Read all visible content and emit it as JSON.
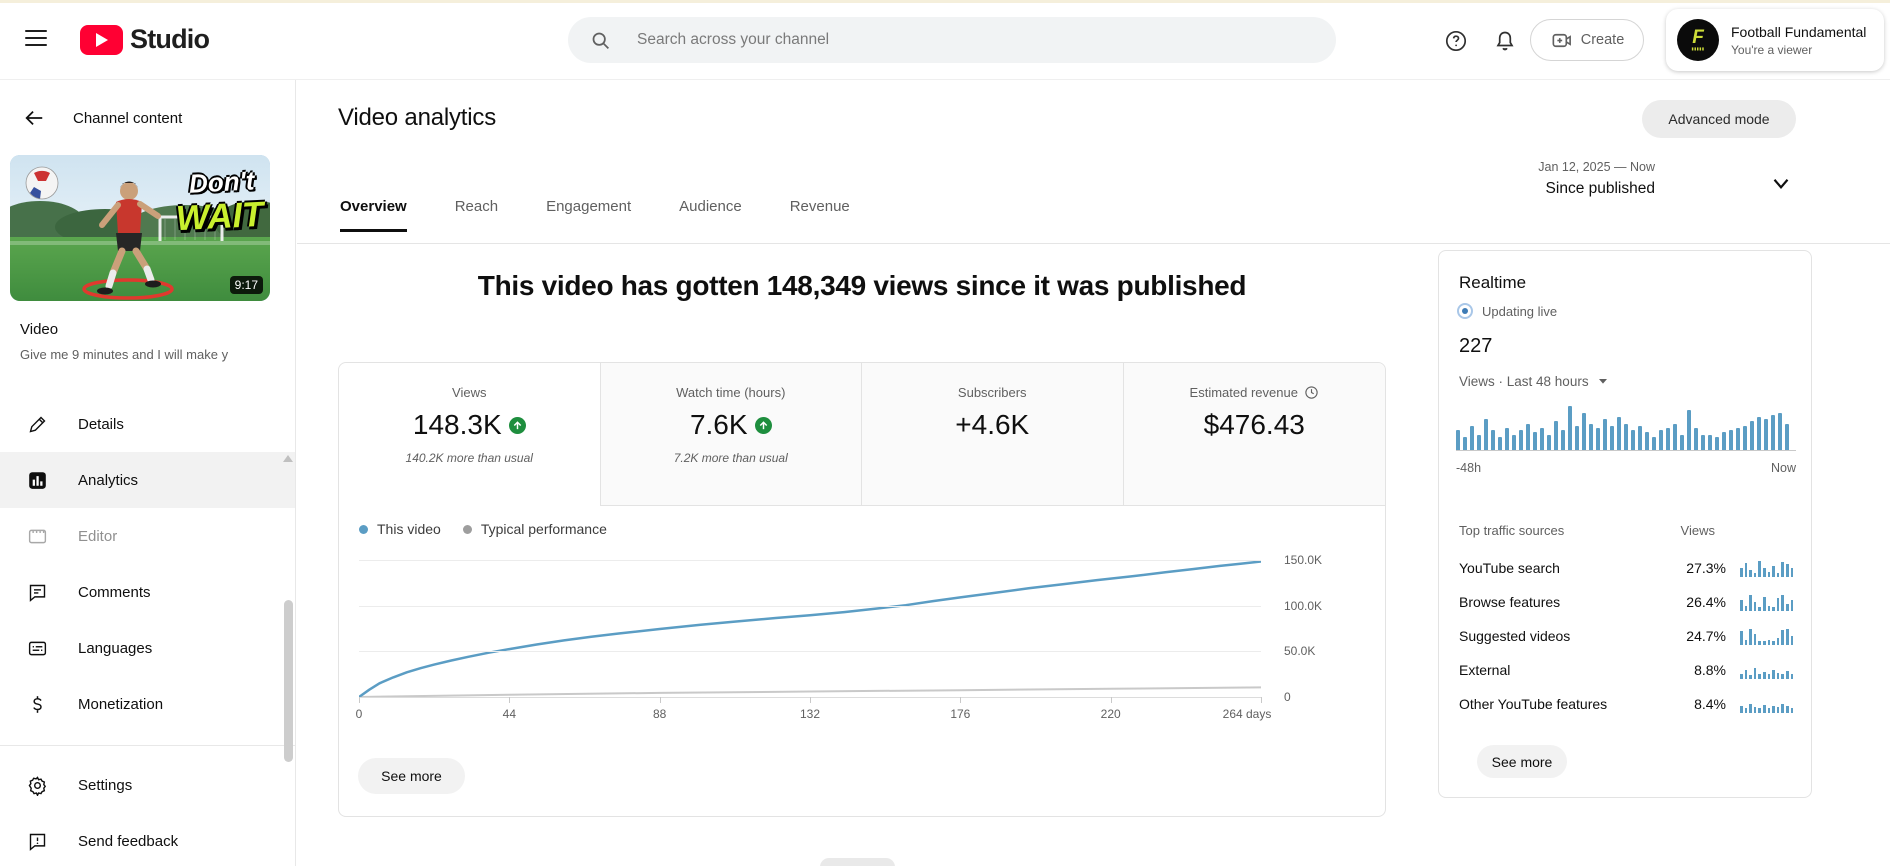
{
  "topbar": {
    "studio": "Studio",
    "search_placeholder": "Search across your channel",
    "create_label": "Create",
    "channel_name": "Football Fundamental",
    "channel_role": "You're a viewer",
    "avatar_monogram": "F"
  },
  "sidebar": {
    "back_title": "Channel content",
    "thumb_text_line1": "Don't",
    "thumb_text_line2": "WAIT",
    "video_duration": "9:17",
    "video_label": "Video",
    "video_subtitle": "Give me 9 minutes and I will make y",
    "items": [
      {
        "label": "Details"
      },
      {
        "label": "Analytics"
      },
      {
        "label": "Editor"
      },
      {
        "label": "Comments"
      },
      {
        "label": "Languages"
      },
      {
        "label": "Monetization"
      }
    ],
    "footer_items": [
      {
        "label": "Settings"
      },
      {
        "label": "Send feedback"
      }
    ]
  },
  "header": {
    "title": "Video analytics",
    "advanced_mode": "Advanced mode",
    "tabs": [
      "Overview",
      "Reach",
      "Engagement",
      "Audience",
      "Revenue"
    ],
    "active_tab": "Overview",
    "date_range": "Jan 12, 2025 — Now",
    "date_label": "Since published"
  },
  "main": {
    "headline": "This video has gotten 148,349 views since it was published",
    "metrics": [
      {
        "label": "Views",
        "value": "148.3K",
        "delta": "140.2K more than usual",
        "trend_up": true,
        "selected": true
      },
      {
        "label": "Watch time (hours)",
        "value": "7.6K",
        "delta": "7.2K more than usual",
        "trend_up": true
      },
      {
        "label": "Subscribers",
        "value": "+4.6K"
      },
      {
        "label": "Estimated revenue",
        "value": "$476.43"
      }
    ],
    "see_more": "See more"
  },
  "realtime": {
    "title": "Realtime",
    "updating": "Updating live",
    "views_count": "227",
    "views_caption": "Views · Last 48 hours",
    "axis_left": "-48h",
    "axis_right": "Now",
    "table_header_sources": "Top traffic sources",
    "table_header_views": "Views",
    "sources": [
      {
        "name": "YouTube search",
        "pct": "27.3%"
      },
      {
        "name": "Browse features",
        "pct": "26.4%"
      },
      {
        "name": "Suggested videos",
        "pct": "24.7%"
      },
      {
        "name": "External",
        "pct": "8.8%"
      },
      {
        "name": "Other YouTube features",
        "pct": "8.4%"
      }
    ],
    "see_more": "See more"
  },
  "colors": {
    "accent_blue": "#5b9dc4",
    "typical_gray": "#c9c9c9",
    "legend_gray": "#9e9e9e",
    "green_badge": "#1e8e3e",
    "brand_red": "#ff0033"
  },
  "chart_data": [
    {
      "type": "line",
      "title": "Cumulative views since published",
      "xlabel": "days",
      "ylabel": "views",
      "xlim": [
        0,
        264
      ],
      "ylim": [
        0,
        150000
      ],
      "grid": true,
      "legend_position": "top-left",
      "x_ticks": [
        {
          "v": 0,
          "label": "0"
        },
        {
          "v": 44,
          "label": "44"
        },
        {
          "v": 88,
          "label": "88"
        },
        {
          "v": 132,
          "label": "132"
        },
        {
          "v": 176,
          "label": "176"
        },
        {
          "v": 220,
          "label": "220"
        },
        {
          "v": 264,
          "label": "264 days"
        }
      ],
      "y_ticks": [
        {
          "v": 0,
          "label": "0"
        },
        {
          "v": 50000,
          "label": "50.0K"
        },
        {
          "v": 100000,
          "label": "100.0K"
        },
        {
          "v": 150000,
          "label": "150.0K"
        }
      ],
      "series": [
        {
          "name": "This video",
          "color": "#5b9dc4",
          "points": [
            [
              0,
              0
            ],
            [
              3,
              8000
            ],
            [
              6,
              15000
            ],
            [
              10,
              21500
            ],
            [
              14,
              27000
            ],
            [
              18,
              31500
            ],
            [
              22,
              35500
            ],
            [
              27,
              40000
            ],
            [
              32,
              44000
            ],
            [
              38,
              48500
            ],
            [
              44,
              52500
            ],
            [
              52,
              57500
            ],
            [
              60,
              62000
            ],
            [
              68,
              66000
            ],
            [
              76,
              69500
            ],
            [
              88,
              74500
            ],
            [
              100,
              79000
            ],
            [
              110,
              82500
            ],
            [
              122,
              86500
            ],
            [
              132,
              89500
            ],
            [
              142,
              93000
            ],
            [
              152,
              97000
            ],
            [
              160,
              100500
            ],
            [
              168,
              105000
            ],
            [
              176,
              109000
            ],
            [
              186,
              114000
            ],
            [
              196,
              119000
            ],
            [
              206,
              123500
            ],
            [
              216,
              128000
            ],
            [
              226,
              132000
            ],
            [
              236,
              136500
            ],
            [
              244,
              140000
            ],
            [
              252,
              143500
            ],
            [
              258,
              146000
            ],
            [
              264,
              148349
            ]
          ]
        },
        {
          "name": "Typical performance",
          "color": "#c9c9c9",
          "points": [
            [
              0,
              0
            ],
            [
              44,
              2500
            ],
            [
              88,
              4500
            ],
            [
              132,
              6000
            ],
            [
              176,
              7500
            ],
            [
              220,
              9000
            ],
            [
              264,
              10500
            ]
          ]
        }
      ]
    },
    {
      "type": "bar",
      "title": "Realtime views, last 48 hours",
      "values": [
        0.45,
        0.3,
        0.55,
        0.35,
        0.7,
        0.45,
        0.3,
        0.5,
        0.35,
        0.45,
        0.6,
        0.4,
        0.5,
        0.35,
        0.65,
        0.45,
        1.0,
        0.55,
        0.85,
        0.6,
        0.5,
        0.7,
        0.55,
        0.75,
        0.6,
        0.45,
        0.55,
        0.4,
        0.3,
        0.45,
        0.5,
        0.6,
        0.35,
        0.9,
        0.5,
        0.35,
        0.35,
        0.3,
        0.4,
        0.45,
        0.5,
        0.55,
        0.65,
        0.75,
        0.7,
        0.8,
        0.85,
        0.6
      ]
    },
    {
      "type": "bar",
      "title": "Traffic source sparklines (relative)",
      "series": [
        {
          "name": "YouTube search",
          "values": [
            0.5,
            0.8,
            0.4,
            0.2,
            0.9,
            0.5,
            0.3,
            0.6,
            0.2,
            0.85,
            0.7,
            0.5
          ]
        },
        {
          "name": "Browse features",
          "values": [
            0.6,
            0.3,
            0.9,
            0.5,
            0.2,
            0.8,
            0.3,
            0.2,
            0.7,
            0.9,
            0.4,
            0.6
          ]
        },
        {
          "name": "Suggested videos",
          "values": [
            0.8,
            0.3,
            0.9,
            0.6,
            0.2,
            0.2,
            0.3,
            0.2,
            0.4,
            0.85,
            0.9,
            0.5
          ]
        },
        {
          "name": "External",
          "values": [
            0.3,
            0.5,
            0.2,
            0.6,
            0.3,
            0.4,
            0.25,
            0.5,
            0.35,
            0.3,
            0.45,
            0.3
          ]
        },
        {
          "name": "Other YouTube features",
          "values": [
            0.4,
            0.3,
            0.5,
            0.35,
            0.3,
            0.45,
            0.3,
            0.4,
            0.35,
            0.5,
            0.4,
            0.3
          ]
        }
      ]
    }
  ]
}
